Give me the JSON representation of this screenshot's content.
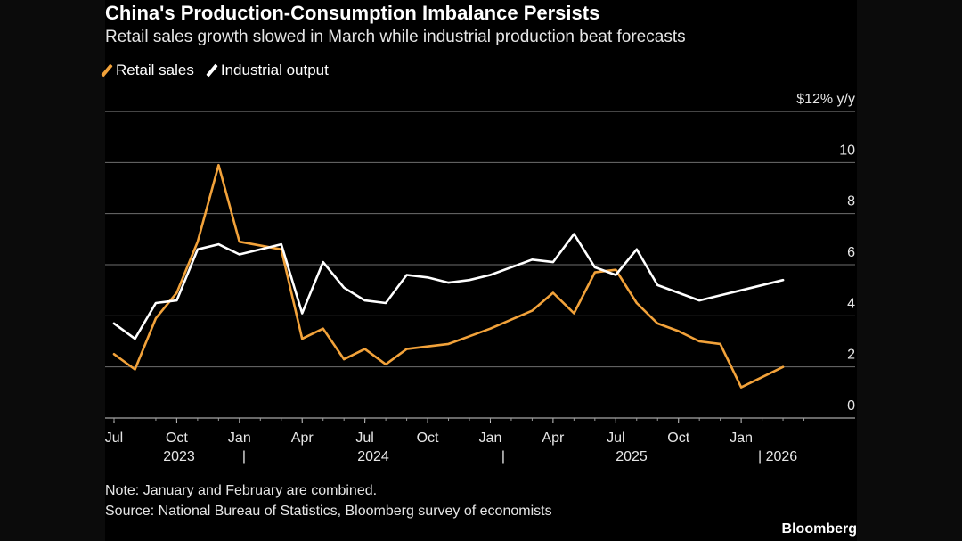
{
  "chart_data": {
    "type": "line",
    "title": "China's Production-Consumption Imbalance Persists",
    "subtitle": "Retail sales growth slowed in March while industrial production beat forecasts",
    "ylabel": "$12% y/y",
    "ylim": [
      0,
      12
    ],
    "yticks": [
      "10",
      "8",
      "6",
      "4",
      "2",
      "0"
    ],
    "ytick_values": [
      10,
      8,
      6,
      4,
      2,
      0
    ],
    "x": [
      "2023-07",
      "2023-08",
      "2023-09",
      "2023-10",
      "2023-11",
      "2023-12",
      "2024-01",
      "2024-03",
      "2024-04",
      "2024-05",
      "2024-06",
      "2024-07",
      "2024-08",
      "2024-09",
      "2024-10",
      "2024-11",
      "2024-12",
      "2025-01",
      "2025-03",
      "2025-04",
      "2025-05",
      "2025-06",
      "2025-07",
      "2025-08",
      "2025-09",
      "2025-10",
      "2025-11",
      "2025-12",
      "2026-01",
      "2026-03"
    ],
    "series": [
      {
        "name": "Retail sales",
        "color": "#f2a23a",
        "values": [
          2.5,
          1.9,
          3.9,
          4.9,
          6.9,
          9.9,
          6.9,
          6.6,
          3.1,
          3.5,
          2.3,
          2.7,
          2.1,
          2.7,
          2.8,
          2.9,
          3.2,
          3.5,
          4.2,
          4.9,
          4.1,
          5.7,
          5.8,
          4.5,
          3.7,
          3.4,
          3.0,
          2.9,
          1.2,
          2.0
        ]
      },
      {
        "name": "Industrial output",
        "color": "#ffffff",
        "values": [
          3.7,
          3.1,
          4.5,
          4.6,
          6.6,
          6.8,
          6.4,
          6.8,
          4.1,
          6.1,
          5.1,
          4.6,
          4.5,
          5.6,
          5.5,
          5.3,
          5.4,
          5.6,
          6.2,
          6.1,
          7.2,
          5.9,
          5.6,
          6.6,
          5.2,
          4.9,
          4.6,
          4.8,
          5.0,
          5.4
        ]
      }
    ],
    "xticks_month": [
      "Jul",
      "Oct",
      "Jan",
      "Apr",
      "Jul",
      "Oct",
      "Jan",
      "Apr",
      "Jul",
      "Oct",
      "Jan"
    ],
    "xticks_year": [
      "2023",
      "|",
      "2024",
      "|",
      "2025",
      "| 2026"
    ],
    "legend_position": "top-left"
  },
  "legend": [
    {
      "label": "Retail sales",
      "color": "#f2a23a"
    },
    {
      "label": "Industrial output",
      "color": "#ffffff"
    }
  ],
  "footer": {
    "note": "Note: January and February are combined.",
    "source": "Source: National Bureau of Statistics, Bloomberg survey of economists",
    "brand": "Bloomberg"
  }
}
